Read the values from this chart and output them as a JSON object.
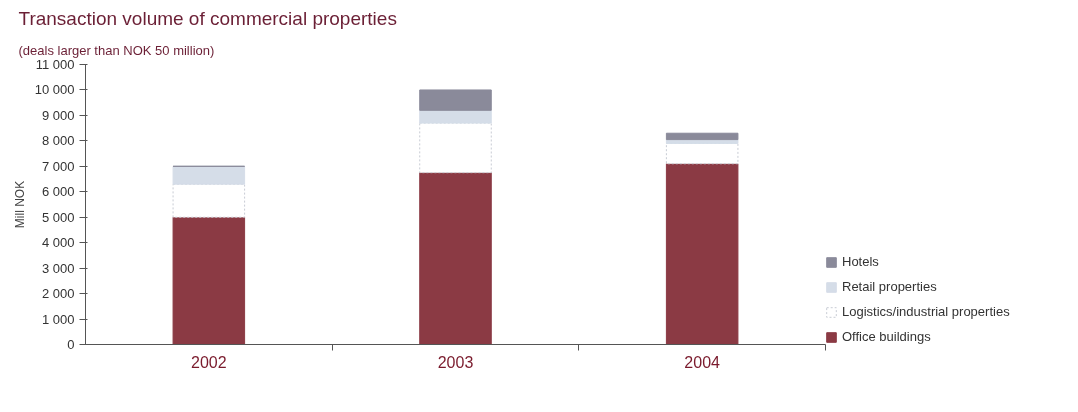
{
  "chart_data": {
    "type": "bar",
    "stacked": true,
    "title": "Transaction volume of commercial properties",
    "subtitle": "(deals larger than NOK 50 million)",
    "ylabel": "Mill NOK",
    "categories": [
      "2002",
      "2003",
      "2004"
    ],
    "series": [
      {
        "name": "Office buildings",
        "color": "#8b3a44",
        "values": [
          5000,
          6750,
          7100
        ]
      },
      {
        "name": "Logistics/industrial properties",
        "color": "#ffffff",
        "values": [
          1300,
          1950,
          800
        ]
      },
      {
        "name": "Retail properties",
        "color": "#d5dde8",
        "values": [
          700,
          500,
          150
        ]
      },
      {
        "name": "Hotels",
        "color": "#8a8a9a",
        "values": [
          0,
          800,
          250
        ]
      }
    ],
    "ylim": [
      0,
      11000
    ],
    "yticks": [
      0,
      {
        "value": 1000,
        "label": "1 000"
      },
      {
        "value": 2000,
        "label": "2 000"
      },
      {
        "value": 3000,
        "label": "3 000"
      },
      {
        "value": 4000,
        "label": "4 000"
      },
      {
        "value": 5000,
        "label": "5 000"
      },
      {
        "value": 6000,
        "label": "6 000"
      },
      {
        "value": 7000,
        "label": "7 000"
      },
      {
        "value": 8000,
        "label": "8 000"
      },
      {
        "value": 9000,
        "label": "9 000"
      },
      {
        "value": 10000,
        "label": "10 000"
      },
      {
        "value": 11000,
        "label": "11 000"
      }
    ],
    "grid": false,
    "legend": "bottom right"
  }
}
